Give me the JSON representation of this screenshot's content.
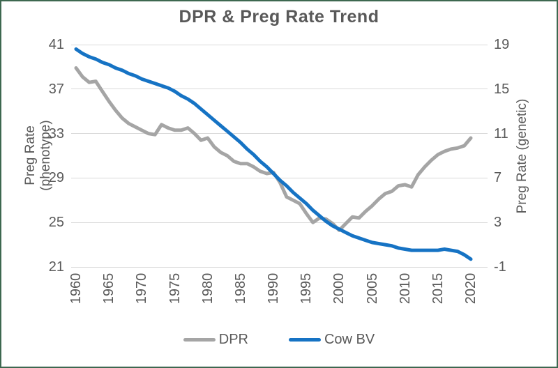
{
  "chart_data": {
    "type": "line",
    "title": "DPR & Preg Rate Trend",
    "grid": true,
    "legend_position": "bottom",
    "text_color": "#595959",
    "gridline_color": "#D9D9D9",
    "border_color": "#3D6850",
    "background": "#FFFFFF",
    "x": [
      1960,
      1961,
      1962,
      1963,
      1964,
      1965,
      1966,
      1967,
      1968,
      1969,
      1970,
      1971,
      1972,
      1973,
      1974,
      1975,
      1976,
      1977,
      1978,
      1979,
      1980,
      1981,
      1982,
      1983,
      1984,
      1985,
      1986,
      1987,
      1988,
      1989,
      1990,
      1991,
      1992,
      1993,
      1994,
      1995,
      1996,
      1997,
      1998,
      1999,
      2000,
      2001,
      2002,
      2003,
      2004,
      2005,
      2006,
      2007,
      2008,
      2009,
      2010,
      2011,
      2012,
      2013,
      2014,
      2015,
      2016,
      2017,
      2018,
      2019,
      2020
    ],
    "x_tick_labels": [
      "1960",
      "1965",
      "1970",
      "1975",
      "1980",
      "1985",
      "1990",
      "1995",
      "2000",
      "2005",
      "2010",
      "2015",
      "2020"
    ],
    "left_axis": {
      "label": "Preg Rate (phenotype)",
      "ticks": [
        41,
        37,
        33,
        29,
        25,
        21
      ],
      "max": 41,
      "min": 21
    },
    "right_axis": {
      "label": "Preg Rate (genetic)",
      "ticks": [
        19,
        15,
        11,
        7,
        3,
        -1
      ],
      "max": 19,
      "min": -1
    },
    "series": [
      {
        "name": "DPR",
        "axis": "left",
        "color": "#A5A5A5",
        "values": [
          38.9,
          38.1,
          37.6,
          37.7,
          36.8,
          35.9,
          35.1,
          34.4,
          33.9,
          33.6,
          33.3,
          33.0,
          32.9,
          33.8,
          33.5,
          33.3,
          33.3,
          33.5,
          33.0,
          32.4,
          32.6,
          31.8,
          31.3,
          31.0,
          30.5,
          30.3,
          30.3,
          30.0,
          29.6,
          29.4,
          29.5,
          28.6,
          27.3,
          27.0,
          26.7,
          25.8,
          25.0,
          25.4,
          25.3,
          24.9,
          24.3,
          24.9,
          25.5,
          25.4,
          26.0,
          26.5,
          27.1,
          27.6,
          27.8,
          28.3,
          28.4,
          28.2,
          29.3,
          30.0,
          30.6,
          31.1,
          31.4,
          31.6,
          31.7,
          31.9,
          32.6
        ]
      },
      {
        "name": "Cow BV",
        "axis": "right",
        "color": "#1673C4",
        "values": [
          18.6,
          18.2,
          17.9,
          17.7,
          17.4,
          17.2,
          16.9,
          16.7,
          16.4,
          16.2,
          15.9,
          15.7,
          15.5,
          15.3,
          15.1,
          14.8,
          14.4,
          14.1,
          13.7,
          13.2,
          12.7,
          12.2,
          11.7,
          11.2,
          10.7,
          10.2,
          9.6,
          9.1,
          8.5,
          8.0,
          7.4,
          6.8,
          6.3,
          5.7,
          5.2,
          4.7,
          4.1,
          3.6,
          3.1,
          2.7,
          2.4,
          2.1,
          1.8,
          1.6,
          1.4,
          1.2,
          1.1,
          1.0,
          0.9,
          0.7,
          0.6,
          0.5,
          0.5,
          0.5,
          0.5,
          0.5,
          0.6,
          0.5,
          0.4,
          0.1,
          -0.3
        ]
      }
    ]
  }
}
